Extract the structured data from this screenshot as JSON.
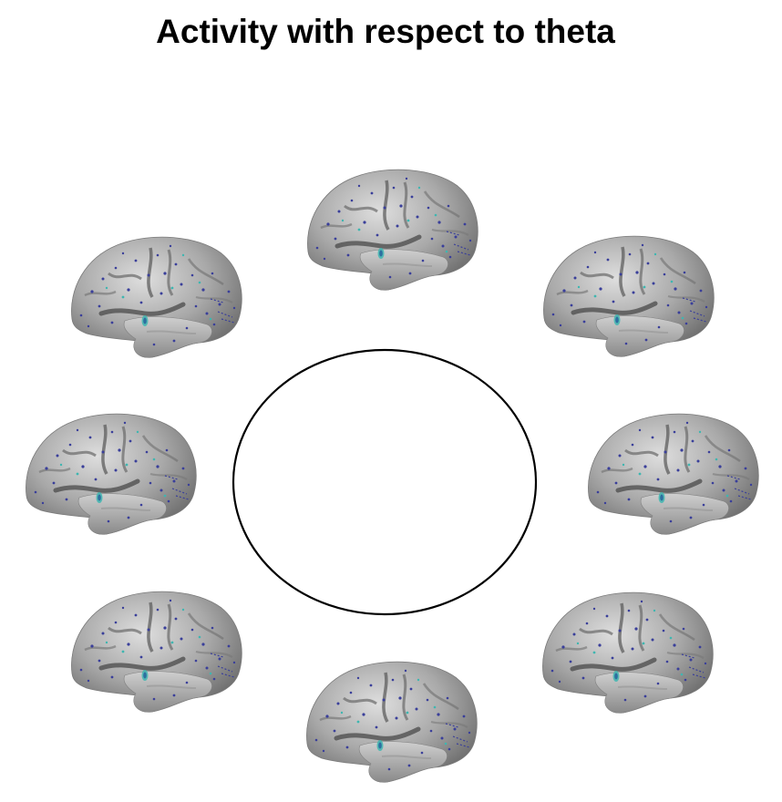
{
  "title": "Activity with respect to theta",
  "colors": {
    "background": "#ffffff",
    "ring": "#000000",
    "cortex_light": "#d8d8d8",
    "cortex_dark": "#6e6e6e",
    "activation_blue": "#3a3f9a",
    "activation_cyan": "#3fb6b0"
  },
  "brains": [
    {
      "name": "brain-view-top",
      "icon": "brain-lateral-surface"
    },
    {
      "name": "brain-view-upper-right",
      "icon": "brain-lateral-surface"
    },
    {
      "name": "brain-view-right",
      "icon": "brain-lateral-surface"
    },
    {
      "name": "brain-view-lower-right",
      "icon": "brain-lateral-surface"
    },
    {
      "name": "brain-view-bottom",
      "icon": "brain-lateral-surface"
    },
    {
      "name": "brain-view-lower-left",
      "icon": "brain-lateral-surface"
    },
    {
      "name": "brain-view-left",
      "icon": "brain-lateral-surface"
    },
    {
      "name": "brain-view-upper-left",
      "icon": "brain-lateral-surface"
    }
  ]
}
